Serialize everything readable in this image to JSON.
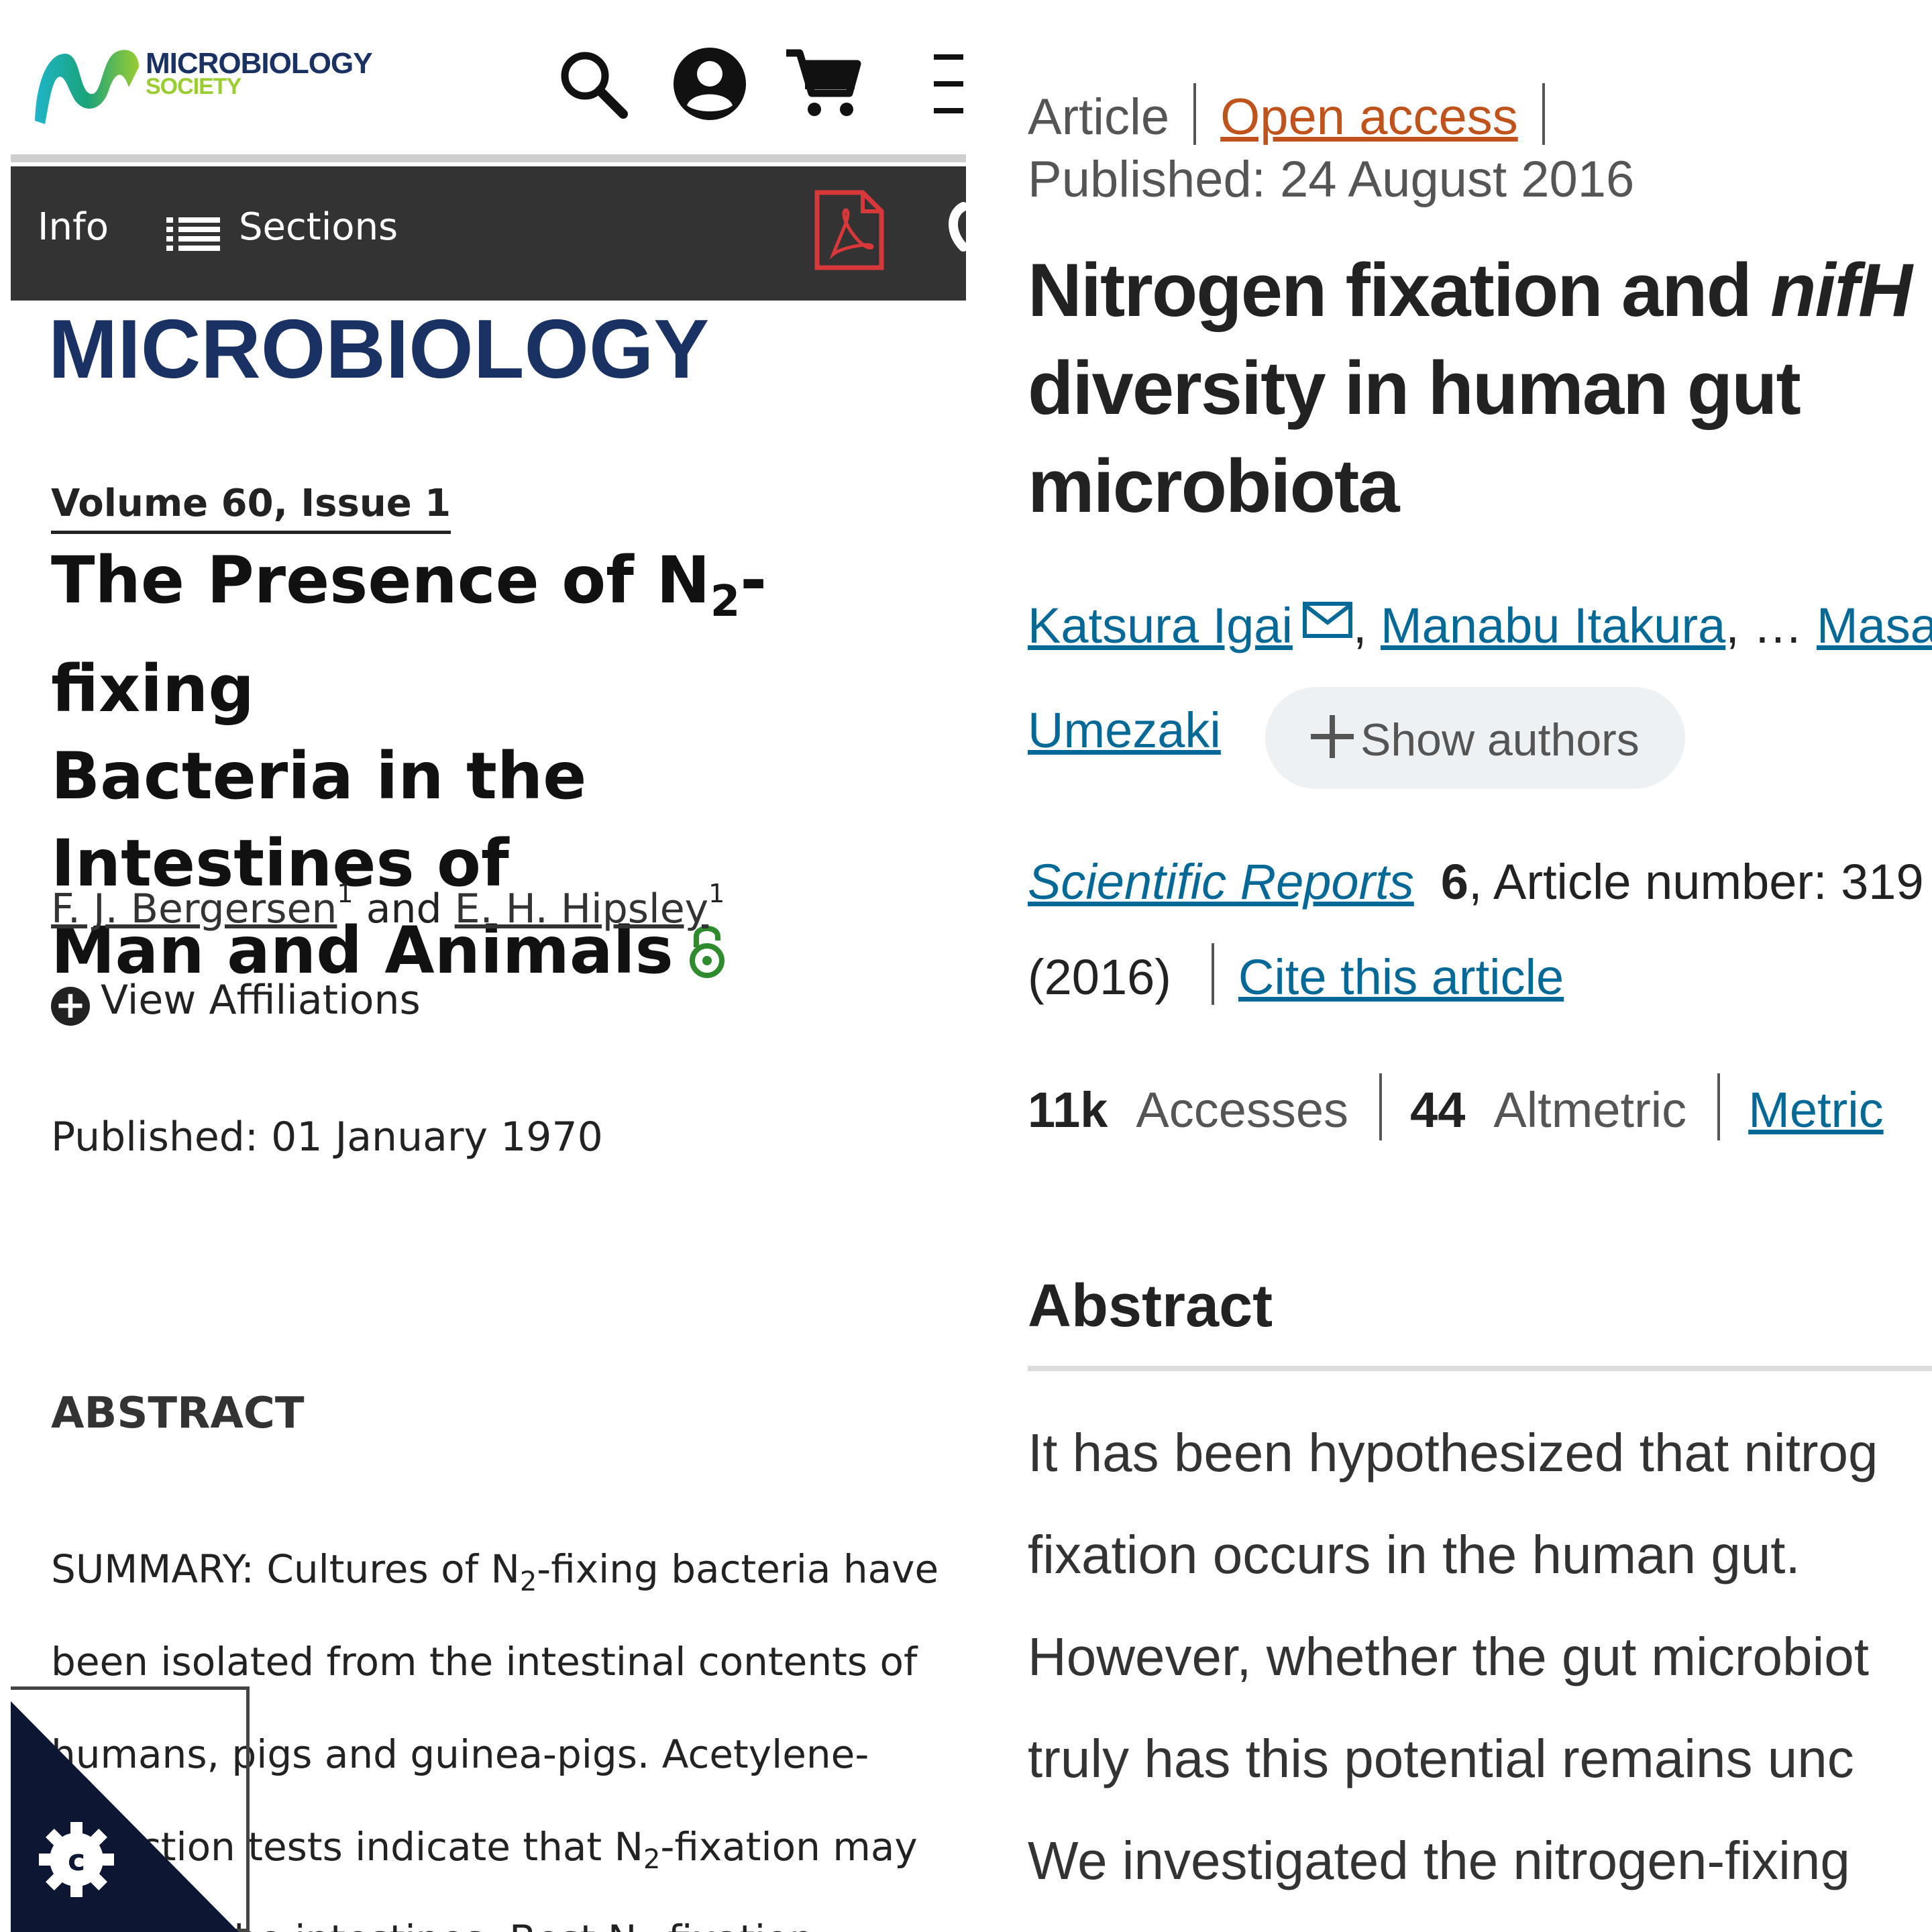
{
  "left": {
    "logo": {
      "line1": "MICROBIOLOGY",
      "line2": "SOCIETY"
    },
    "nav": {
      "info": "Info",
      "sections": "Sections"
    },
    "journal_name": "MICROBIOLOGY",
    "volume": "Volume 60, Issue 1",
    "title_part1": "The Presence of N",
    "title_sub": "2",
    "title_part2": "-fixing",
    "title_line2": "Bacteria in the Intestines of",
    "title_line3": "Man and Animals",
    "authors": {
      "author1": "F. J. Bergersen",
      "author1_sup": "1",
      "and": "and",
      "author2": "E. H. Hipsley",
      "author2_sup": "1"
    },
    "view_affiliations": "View Affiliations",
    "published": "Published: 01 January 1970",
    "abstract_heading": "ABSTRACT",
    "abstract": {
      "l1a": "SUMMARY: Cultures of N",
      "l1sub": "2",
      "l1b": "-fixing bacteria have",
      "l2": "been isolated from the intestinal contents of",
      "l3": "humans, pigs and guinea-pigs. Acetylene-",
      "l4a": "reduction tests indicate that N",
      "l4sub": "2",
      "l4b": "-fixation may",
      "l5a": "occur in the intestines. Best N",
      "l5sub": "2",
      "l5b": "-fixation"
    },
    "cookie_icon": "cookie-settings-icon",
    "colors": {
      "brand_navy": "#1a3263",
      "nav_dark": "#333333",
      "pdf_red": "#d9383a",
      "oa_green": "#2e8b2e"
    }
  },
  "right": {
    "article_type": "Article",
    "open_access": "Open access",
    "published": "Published: 24 August 2016",
    "title_part1": "Nitrogen fixation and ",
    "title_italic": "nifH",
    "title_line2": "diversity in human gut",
    "title_line3": "microbiota",
    "authors": {
      "first": "Katsura Igai",
      "second": "Manabu Itakura",
      "ellipsis": ", … ",
      "third_start": "Masa",
      "third_end": "Umezaki",
      "show_authors": "Show authors"
    },
    "citation": {
      "journal": "Scientific Reports",
      "volume": "6",
      "article_number": ", Article number: 319",
      "year": "(2016)",
      "cite_link": "Cite this article"
    },
    "metrics": {
      "accesses_value": "11k",
      "accesses_label": "Accesses",
      "altmetric_value": "44",
      "altmetric_label": "Altmetric",
      "metrics_link": "Metric"
    },
    "abstract_heading": "Abstract",
    "abstract_lines": [
      "It has been hypothesized that nitrog",
      "fixation occurs in the human gut.",
      "However, whether the gut microbiot",
      "truly has this potential remains unc",
      "We investigated the nitrogen-fixing"
    ],
    "colors": {
      "link_blue": "#046996",
      "oa_orange": "#c0531c"
    }
  }
}
